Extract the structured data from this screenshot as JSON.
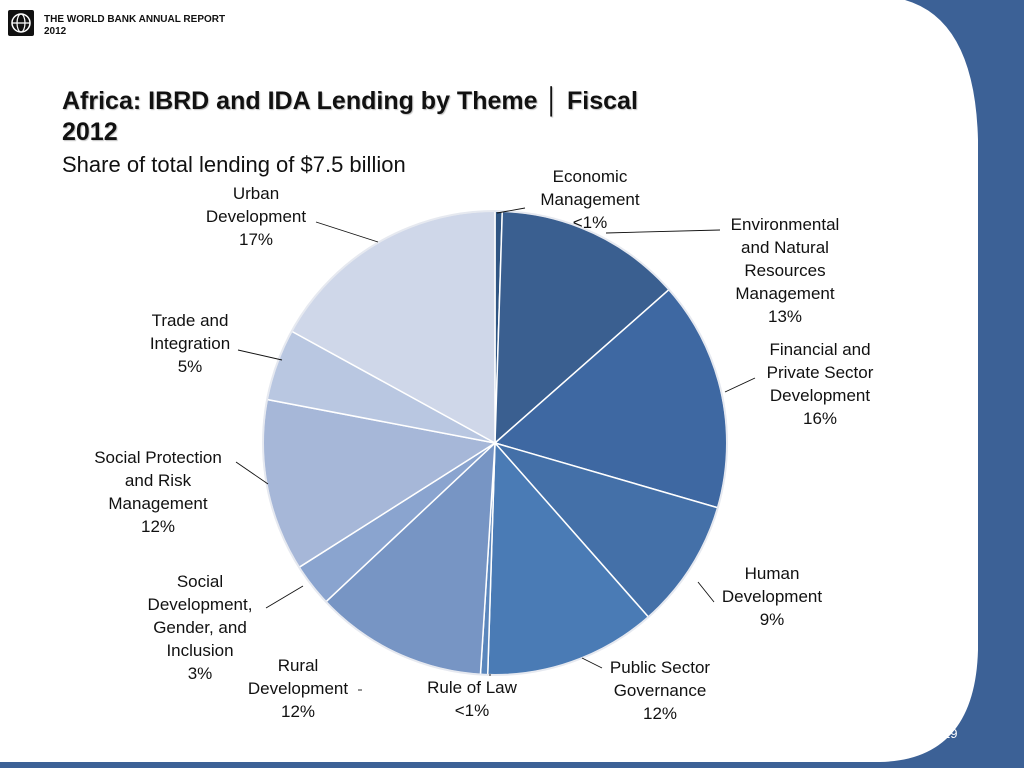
{
  "header": {
    "org_line1": "THE WORLD BANK  ANNUAL REPORT",
    "org_line2": "2012",
    "logo_icon": "world-bank-globe-icon"
  },
  "page_number": "19",
  "colors": {
    "band": "#3c6196",
    "title_text": "#111111"
  },
  "chart_data": {
    "type": "pie",
    "title": "Africa:  IBRD and IDA Lending by Theme │ Fiscal 2012",
    "title_line1": "Africa:  IBRD and IDA Lending by Theme │ Fiscal",
    "title_line2": "2012",
    "subtitle": "Share of total lending of $7.5 billion",
    "slices": [
      {
        "name": "Economic Management",
        "value": 0.5,
        "display": "<1%",
        "color": "#2f5583",
        "label_lines": [
          "Economic",
          "Management",
          "<1%"
        ]
      },
      {
        "name": "Environmental and Natural Resources Management",
        "value": 13,
        "display": "13%",
        "color": "#3a5f90",
        "label_lines": [
          "Environmental",
          "and Natural",
          "Resources",
          "Management",
          "13%"
        ]
      },
      {
        "name": "Financial and Private Sector Development",
        "value": 16,
        "display": "16%",
        "color": "#3e68a2",
        "label_lines": [
          "Financial and",
          "Private Sector",
          "Development",
          "16%"
        ]
      },
      {
        "name": "Human Development",
        "value": 9,
        "display": "9%",
        "color": "#4470a8",
        "label_lines": [
          "Human",
          "Development",
          "9%"
        ]
      },
      {
        "name": "Public Sector Governance",
        "value": 12,
        "display": "12%",
        "color": "#4a7bb5",
        "label_lines": [
          "Public Sector",
          "Governance",
          "12%"
        ]
      },
      {
        "name": "Rule of Law",
        "value": 0.5,
        "display": "<1%",
        "color": "#5a86bc",
        "label_lines": [
          "Rule of Law",
          "<1%"
        ]
      },
      {
        "name": "Rural Development",
        "value": 12,
        "display": "12%",
        "color": "#7795c4",
        "label_lines": [
          "Rural",
          "Development",
          "12%"
        ]
      },
      {
        "name": "Social Development, Gender, and Inclusion",
        "value": 3,
        "display": "3%",
        "color": "#8aa4cf",
        "label_lines": [
          "Social",
          "Development,",
          "Gender, and",
          "Inclusion",
          "3%"
        ]
      },
      {
        "name": "Social Protection and Risk Management",
        "value": 12,
        "display": "12%",
        "color": "#a6b7d8",
        "label_lines": [
          "Social Protection",
          "and Risk",
          "Management",
          "12%"
        ]
      },
      {
        "name": "Trade and Integration",
        "value": 5,
        "display": "5%",
        "color": "#b9c7e1",
        "label_lines": [
          "Trade and",
          "Integration",
          "5%"
        ]
      },
      {
        "name": "Urban Development",
        "value": 17,
        "display": "17%",
        "color": "#cfd7e9",
        "label_lines": [
          "Urban",
          "Development",
          "17%"
        ]
      }
    ]
  }
}
